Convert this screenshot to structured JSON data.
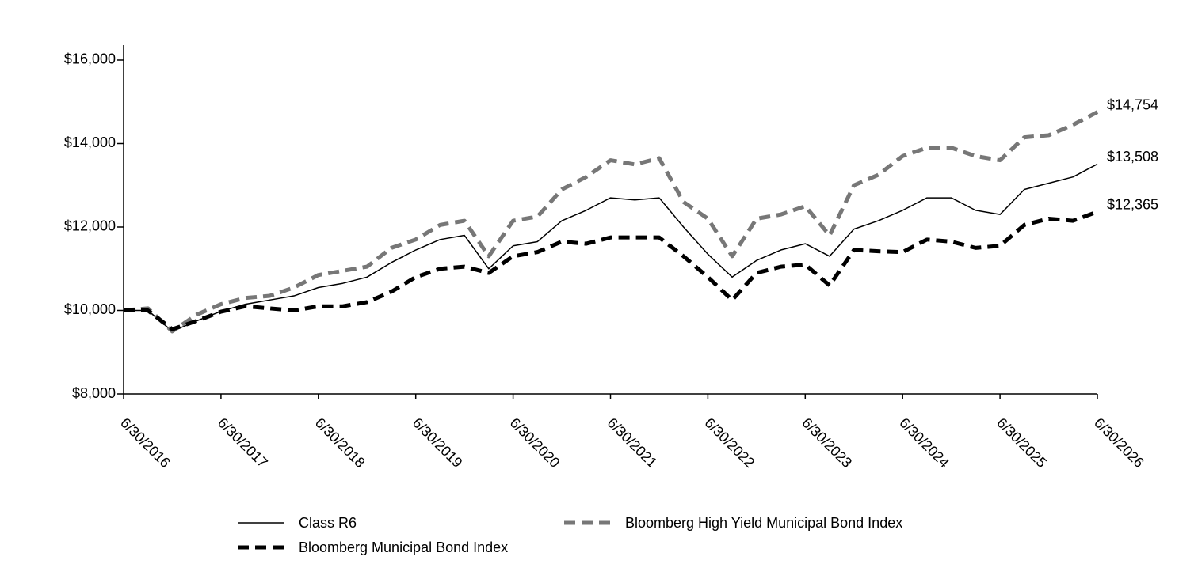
{
  "chart_data": {
    "type": "line",
    "categories": [
      "6/30/2016",
      null,
      null,
      null,
      "6/30/2017",
      null,
      null,
      null,
      "6/30/2018",
      null,
      null,
      null,
      "6/30/2019",
      null,
      null,
      null,
      "6/30/2020",
      null,
      null,
      null,
      "6/30/2021",
      null,
      null,
      null,
      "6/30/2022",
      null,
      null,
      null,
      "6/30/2023",
      null,
      null,
      null,
      "6/30/2024",
      null,
      null,
      null,
      "6/30/2025",
      null,
      null,
      null,
      "6/30/2026"
    ],
    "series": [
      {
        "name": "Class R6",
        "color": "#000000",
        "style": "solid",
        "values": [
          10000,
          10000,
          9500,
          9750,
          9980,
          10150,
          10250,
          10350,
          10550,
          10650,
          10800,
          11150,
          11450,
          11700,
          11800,
          11000,
          11550,
          11650,
          12150,
          12400,
          12700,
          12650,
          12700,
          12000,
          11350,
          10800,
          11200,
          11450,
          11600,
          11300,
          11950,
          12150,
          12400,
          12700,
          12700,
          12400,
          12300,
          12900,
          13050,
          13200,
          13508
        ],
        "value_labels": [
          null,
          null,
          null,
          null,
          null,
          null,
          null,
          null,
          null,
          null,
          null,
          null,
          null,
          null,
          null,
          null,
          null,
          null,
          null,
          null,
          null,
          null,
          null,
          null,
          null,
          null,
          null,
          null,
          null,
          null,
          null,
          null,
          null,
          null,
          null,
          null,
          null,
          null,
          null,
          null,
          "$13,508"
        ]
      },
      {
        "name": "Bloomberg High Yield Municipal Bond Index",
        "color": "#777777",
        "style": "dashed",
        "values": [
          10000,
          10050,
          9500,
          9900,
          10150,
          10300,
          10350,
          10550,
          10850,
          10950,
          11050,
          11500,
          11700,
          12050,
          12150,
          11300,
          12150,
          12250,
          12900,
          13200,
          13600,
          13500,
          13650,
          12600,
          12200,
          11300,
          12200,
          12300,
          12500,
          11800,
          13000,
          13250,
          13700,
          13900,
          13900,
          13700,
          13600,
          14150,
          14200,
          14450,
          14754
        ],
        "value_labels": [
          null,
          null,
          null,
          null,
          null,
          null,
          null,
          null,
          null,
          null,
          null,
          null,
          null,
          null,
          null,
          null,
          null,
          null,
          null,
          null,
          null,
          null,
          null,
          null,
          null,
          null,
          null,
          null,
          null,
          null,
          null,
          null,
          null,
          null,
          null,
          null,
          null,
          null,
          null,
          null,
          "$14,754"
        ]
      },
      {
        "name": "Bloomberg Municipal Bond Index",
        "color": "#000000",
        "style": "dashed",
        "values": [
          10000,
          10000,
          9550,
          9750,
          9970,
          10100,
          10050,
          10000,
          10100,
          10100,
          10200,
          10450,
          10800,
          11000,
          11050,
          10900,
          11300,
          11400,
          11650,
          11600,
          11750,
          11750,
          11750,
          11300,
          10800,
          10250,
          10900,
          11050,
          11100,
          10600,
          11450,
          11420,
          11400,
          11700,
          11650,
          11500,
          11550,
          12050,
          12200,
          12150,
          12365
        ],
        "value_labels": [
          null,
          null,
          null,
          null,
          null,
          null,
          null,
          null,
          null,
          null,
          null,
          null,
          null,
          null,
          null,
          null,
          null,
          null,
          null,
          null,
          null,
          null,
          null,
          null,
          null,
          null,
          null,
          null,
          null,
          null,
          null,
          null,
          null,
          null,
          null,
          null,
          null,
          null,
          null,
          null,
          "$12,365"
        ]
      }
    ],
    "ylim": [
      8000,
      16360
    ],
    "yticks": [
      {
        "value": 8000,
        "label": "$8,000"
      },
      {
        "value": 10000,
        "label": "$10,000"
      },
      {
        "value": 12000,
        "label": "$12,000"
      },
      {
        "value": 14000,
        "label": "$14,000"
      },
      {
        "value": 16000,
        "label": "$16,000"
      }
    ],
    "grid": false
  }
}
